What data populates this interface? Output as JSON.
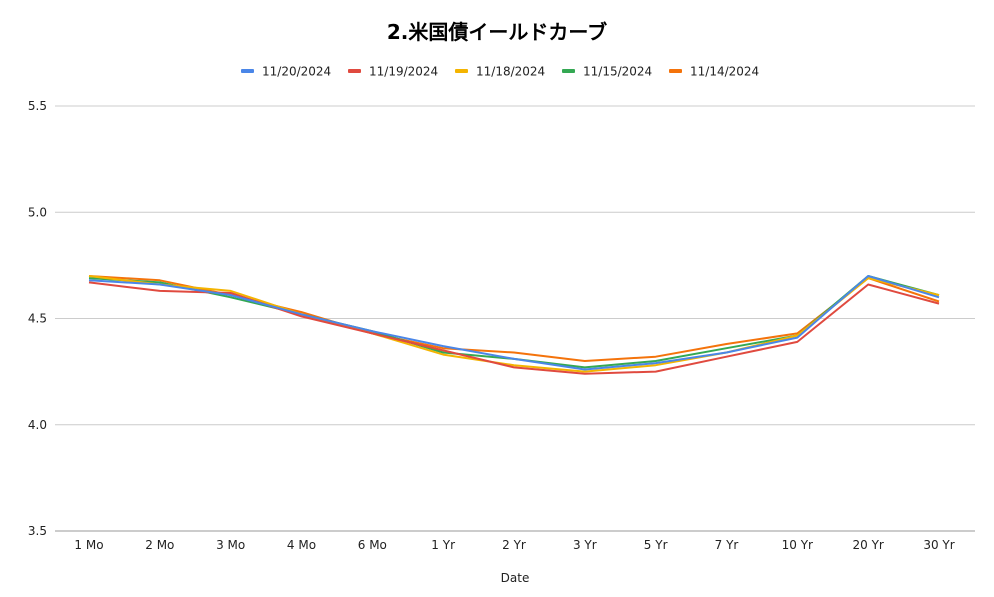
{
  "chart_data": {
    "type": "line",
    "title": "2.米国債イールドカーブ",
    "xlabel": "Date",
    "ylabel": "",
    "ylim": [
      3.5,
      5.5
    ],
    "yticks": [
      "3.5",
      "4.0",
      "4.5",
      "5.0",
      "5.5"
    ],
    "grid": true,
    "legend_position": "top",
    "categories": [
      "1 Mo",
      "2 Mo",
      "3 Mo",
      "4 Mo",
      "6 Mo",
      "1 Yr",
      "2 Yr",
      "3 Yr",
      "5 Yr",
      "7 Yr",
      "10 Yr",
      "20 Yr",
      "30 Yr"
    ],
    "series": [
      {
        "name": "11/20/2024",
        "color": "#4a86e8",
        "values": [
          4.68,
          4.66,
          4.61,
          4.52,
          4.44,
          4.37,
          4.31,
          4.26,
          4.29,
          4.34,
          4.41,
          4.7,
          4.6
        ]
      },
      {
        "name": "11/19/2024",
        "color": "#e04a3f",
        "values": [
          4.67,
          4.63,
          4.62,
          4.51,
          4.43,
          4.35,
          4.27,
          4.24,
          4.25,
          4.32,
          4.39,
          4.66,
          4.57
        ]
      },
      {
        "name": "11/18/2024",
        "color": "#f4b400",
        "values": [
          4.7,
          4.66,
          4.63,
          4.52,
          4.43,
          4.33,
          4.28,
          4.25,
          4.28,
          4.34,
          4.42,
          4.69,
          4.61
        ]
      },
      {
        "name": "11/15/2024",
        "color": "#34a853",
        "values": [
          4.69,
          4.67,
          4.6,
          4.52,
          4.44,
          4.34,
          4.31,
          4.27,
          4.3,
          4.36,
          4.42,
          4.7,
          4.61
        ]
      },
      {
        "name": "11/14/2024",
        "color": "#f4730b",
        "values": [
          4.7,
          4.68,
          4.61,
          4.53,
          4.43,
          4.36,
          4.34,
          4.3,
          4.32,
          4.38,
          4.43,
          4.69,
          4.58
        ]
      }
    ]
  }
}
